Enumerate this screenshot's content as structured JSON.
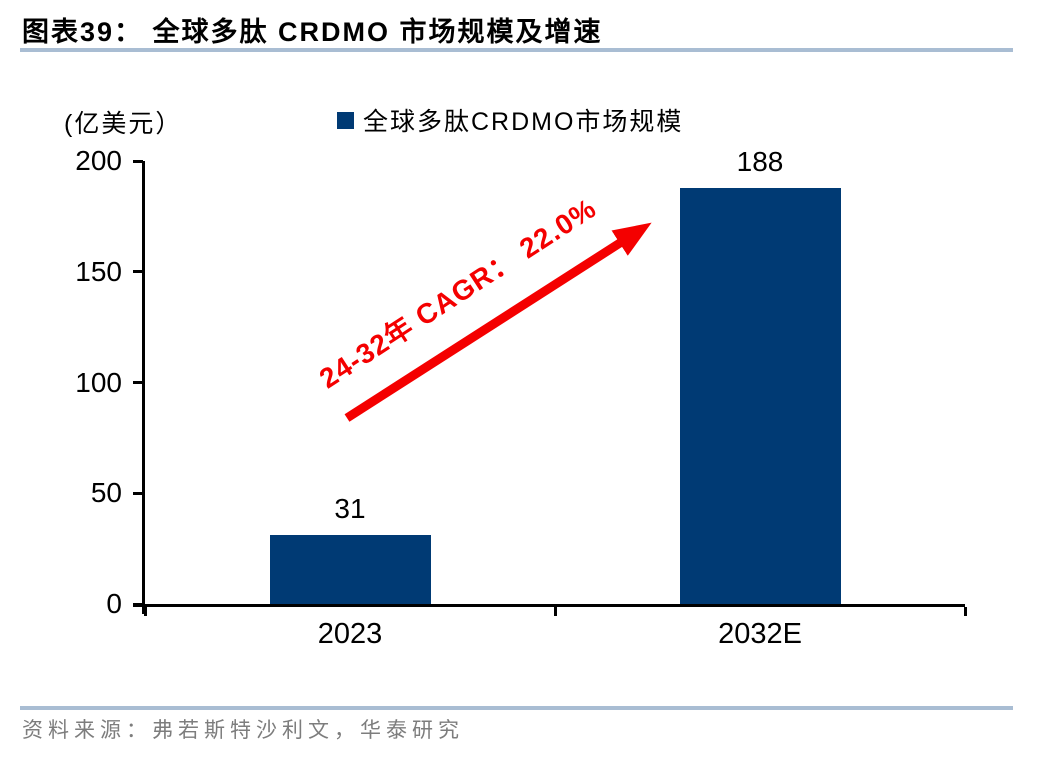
{
  "header": {
    "caption": "图表39：  全球多肽 CRDMO 市场规模及增速"
  },
  "footer": {
    "source": "资料来源：弗若斯特沙利文，华泰研究"
  },
  "page": {
    "rule_color": "#a9bdd3",
    "background": "#ffffff"
  },
  "chart_data": {
    "type": "bar",
    "title": "全球多肽CRDMO市场规模及增速",
    "unit_label": "(亿美元）",
    "legend": [
      {
        "label": "全球多肽CRDMO市场规模",
        "color": "#003a74",
        "position": "top"
      }
    ],
    "categories": [
      "2023",
      "2032E"
    ],
    "values": [
      31,
      188
    ],
    "xlabel": "",
    "ylabel": "",
    "ylim": [
      0,
      200
    ],
    "yticks": [
      0,
      50,
      100,
      150,
      200
    ],
    "grid": false,
    "bar_color": "#003a74",
    "axis_color": "#000000",
    "annotation": {
      "text": "24-32年 CAGR： 22.0%",
      "color": "#f40000",
      "kind": "growth-arrow"
    }
  }
}
